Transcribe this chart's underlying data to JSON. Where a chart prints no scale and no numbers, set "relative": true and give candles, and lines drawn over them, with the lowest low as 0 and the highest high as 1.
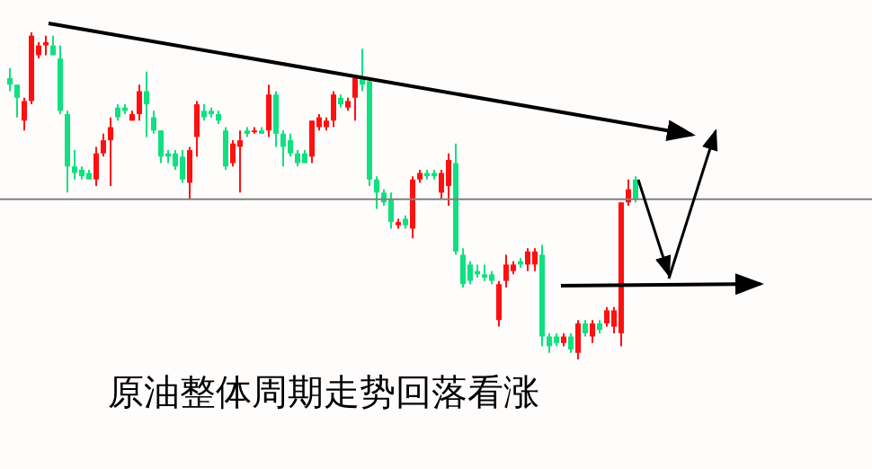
{
  "chart_data": {
    "type": "candlestick",
    "relative": true,
    "tick_labels": false,
    "categories": [
      null,
      null,
      null,
      null,
      null,
      null,
      null,
      null,
      null,
      null,
      null,
      null,
      null,
      null,
      null,
      null,
      null,
      null,
      null,
      null,
      null,
      null,
      null,
      null,
      null,
      null,
      null,
      null,
      null,
      null,
      null,
      null,
      null,
      null,
      null,
      null,
      null,
      null,
      null,
      null,
      null,
      null,
      null,
      null,
      null,
      null,
      null,
      null,
      null,
      null,
      null,
      null,
      null,
      null,
      null,
      null,
      null,
      null,
      null,
      null,
      null,
      null,
      null,
      null,
      null,
      null,
      null,
      null,
      null,
      null,
      null,
      null,
      null,
      null,
      null,
      null,
      null,
      null,
      null,
      null,
      null,
      null,
      null,
      null,
      null,
      null,
      null,
      null
    ],
    "ohlc": [
      [
        0.86,
        0.89,
        0.82,
        0.84
      ],
      [
        0.84,
        0.84,
        0.74,
        0.8
      ],
      [
        0.73,
        0.8,
        0.7,
        0.79
      ],
      [
        0.79,
        1.0,
        0.78,
        0.99
      ],
      [
        0.93,
        0.97,
        0.92,
        0.96
      ],
      [
        0.96,
        0.99,
        0.93,
        0.97
      ],
      [
        0.96,
        0.99,
        0.93,
        0.93
      ],
      [
        0.92,
        0.96,
        0.75,
        0.76
      ],
      [
        0.75,
        0.76,
        0.51,
        0.59
      ],
      [
        0.59,
        0.64,
        0.55,
        0.57
      ],
      [
        0.58,
        0.59,
        0.55,
        0.56
      ],
      [
        0.57,
        0.58,
        0.55,
        0.55
      ],
      [
        0.55,
        0.65,
        0.53,
        0.63
      ],
      [
        0.63,
        0.69,
        0.62,
        0.67
      ],
      [
        0.67,
        0.74,
        0.53,
        0.71
      ],
      [
        0.77,
        0.78,
        0.73,
        0.74
      ],
      [
        0.77,
        0.78,
        0.75,
        0.76
      ],
      [
        0.73,
        0.76,
        0.73,
        0.75
      ],
      [
        0.75,
        0.84,
        0.73,
        0.82
      ],
      [
        0.82,
        0.88,
        0.68,
        0.78
      ],
      [
        0.74,
        0.76,
        0.69,
        0.7
      ],
      [
        0.7,
        0.7,
        0.6,
        0.62
      ],
      [
        0.63,
        0.64,
        0.6,
        0.62
      ],
      [
        0.63,
        0.64,
        0.58,
        0.59
      ],
      [
        0.62,
        0.64,
        0.54,
        0.55
      ],
      [
        0.54,
        0.65,
        0.49,
        0.64
      ],
      [
        0.68,
        0.79,
        0.62,
        0.78
      ],
      [
        0.76,
        0.78,
        0.73,
        0.74
      ],
      [
        0.76,
        0.77,
        0.74,
        0.75
      ],
      [
        0.75,
        0.76,
        0.72,
        0.73
      ],
      [
        0.7,
        0.71,
        0.58,
        0.59
      ],
      [
        0.6,
        0.67,
        0.59,
        0.66
      ],
      [
        0.65,
        0.7,
        0.51,
        0.67
      ],
      [
        0.7,
        0.71,
        0.68,
        0.69
      ],
      [
        0.7,
        0.71,
        0.69,
        0.7
      ],
      [
        0.7,
        0.71,
        0.69,
        0.69
      ],
      [
        0.7,
        0.84,
        0.68,
        0.81
      ],
      [
        0.81,
        0.82,
        0.65,
        0.69
      ],
      [
        0.69,
        0.7,
        0.59,
        0.65
      ],
      [
        0.67,
        0.69,
        0.62,
        0.63
      ],
      [
        0.63,
        0.64,
        0.59,
        0.6
      ],
      [
        0.63,
        0.64,
        0.6,
        0.6
      ],
      [
        0.62,
        0.73,
        0.6,
        0.73
      ],
      [
        0.71,
        0.75,
        0.7,
        0.74
      ],
      [
        0.71,
        0.74,
        0.7,
        0.73
      ],
      [
        0.73,
        0.82,
        0.71,
        0.81
      ],
      [
        0.8,
        0.81,
        0.77,
        0.78
      ],
      [
        0.77,
        0.8,
        0.76,
        0.79
      ],
      [
        0.8,
        0.87,
        0.73,
        0.86
      ],
      [
        0.86,
        0.95,
        0.82,
        0.84
      ],
      [
        0.85,
        0.86,
        0.53,
        0.55
      ],
      [
        0.55,
        0.56,
        0.46,
        0.51
      ],
      [
        0.51,
        0.52,
        0.47,
        0.48
      ],
      [
        0.49,
        0.51,
        0.4,
        0.42
      ],
      [
        0.41,
        0.43,
        0.4,
        0.42
      ],
      [
        0.43,
        0.44,
        0.4,
        0.41
      ],
      [
        0.4,
        0.56,
        0.37,
        0.55
      ],
      [
        0.55,
        0.58,
        0.54,
        0.57
      ],
      [
        0.57,
        0.58,
        0.55,
        0.56
      ],
      [
        0.57,
        0.58,
        0.55,
        0.56
      ],
      [
        0.51,
        0.58,
        0.49,
        0.57
      ],
      [
        0.53,
        0.63,
        0.47,
        0.61
      ],
      [
        0.6,
        0.66,
        0.32,
        0.33
      ],
      [
        0.32,
        0.34,
        0.22,
        0.23
      ],
      [
        0.29,
        0.3,
        0.23,
        0.24
      ],
      [
        0.27,
        0.29,
        0.25,
        0.26
      ],
      [
        0.26,
        0.29,
        0.24,
        0.25
      ],
      [
        0.26,
        0.27,
        0.23,
        0.24
      ],
      [
        0.12,
        0.24,
        0.1,
        0.23
      ],
      [
        0.24,
        0.32,
        0.22,
        0.29
      ],
      [
        0.27,
        0.3,
        0.26,
        0.29
      ],
      [
        0.3,
        0.31,
        0.28,
        0.29
      ],
      [
        0.29,
        0.34,
        0.27,
        0.33
      ],
      [
        0.29,
        0.34,
        0.27,
        0.33
      ],
      [
        0.32,
        0.35,
        0.04,
        0.07
      ],
      [
        0.07,
        0.08,
        0.02,
        0.04
      ],
      [
        0.07,
        0.08,
        0.04,
        0.05
      ],
      [
        0.05,
        0.08,
        0.04,
        0.07
      ],
      [
        0.07,
        0.08,
        0.02,
        0.03
      ],
      [
        0.02,
        0.12,
        0,
        0.11
      ],
      [
        0.11,
        0.12,
        0.07,
        0.08
      ],
      [
        0.07,
        0.12,
        0.05,
        0.11
      ],
      [
        0.11,
        0.12,
        0.08,
        0.09
      ],
      [
        0.11,
        0.16,
        0.1,
        0.15
      ],
      [
        0.1,
        0.16,
        0.08,
        0.15
      ],
      [
        0.08,
        0.48,
        0.04,
        0.48
      ],
      [
        0.48,
        0.55,
        0.47,
        0.52
      ],
      [
        0.55,
        0.56,
        0.48,
        0.49
      ]
    ],
    "ref_lines": [
      {
        "axis": "y",
        "value": 0.49,
        "color": "#808080"
      }
    ],
    "annotations": [
      "原油整体周期走势回落看涨"
    ]
  }
}
